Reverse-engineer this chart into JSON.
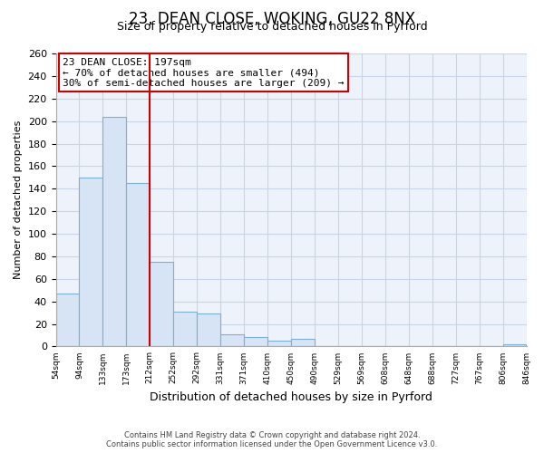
{
  "title": "23, DEAN CLOSE, WOKING, GU22 8NX",
  "subtitle": "Size of property relative to detached houses in Pyrford",
  "xlabel": "Distribution of detached houses by size in Pyrford",
  "ylabel": "Number of detached properties",
  "bar_values": [
    47,
    150,
    204,
    145,
    75,
    31,
    29,
    11,
    8,
    5,
    7,
    0,
    0,
    0,
    0,
    0,
    0,
    0,
    0,
    2
  ],
  "bin_labels": [
    "54sqm",
    "94sqm",
    "133sqm",
    "173sqm",
    "212sqm",
    "252sqm",
    "292sqm",
    "331sqm",
    "371sqm",
    "410sqm",
    "450sqm",
    "490sqm",
    "529sqm",
    "569sqm",
    "608sqm",
    "648sqm",
    "688sqm",
    "727sqm",
    "767sqm",
    "806sqm",
    "846sqm"
  ],
  "bar_color": "#d6e4f5",
  "bar_edge_color": "#7bafd4",
  "vline_color": "#cc0000",
  "vline_position": 3.5,
  "annotation_title": "23 DEAN CLOSE: 197sqm",
  "annotation_line1": "← 70% of detached houses are smaller (494)",
  "annotation_line2": "30% of semi-detached houses are larger (209) →",
  "annotation_box_color": "#ffffff",
  "annotation_box_edge": "#cc0000",
  "ylim": [
    0,
    260
  ],
  "yticks": [
    0,
    20,
    40,
    60,
    80,
    100,
    120,
    140,
    160,
    180,
    200,
    220,
    240,
    260
  ],
  "footer_line1": "Contains HM Land Registry data © Crown copyright and database right 2024.",
  "footer_line2": "Contains public sector information licensed under the Open Government Licence v3.0.",
  "background_color": "#ffffff",
  "plot_bg_color": "#eef3fb",
  "grid_color": "#c8d4e8",
  "title_fontsize": 12,
  "subtitle_fontsize": 9,
  "ylabel_fontsize": 8,
  "xlabel_fontsize": 9
}
